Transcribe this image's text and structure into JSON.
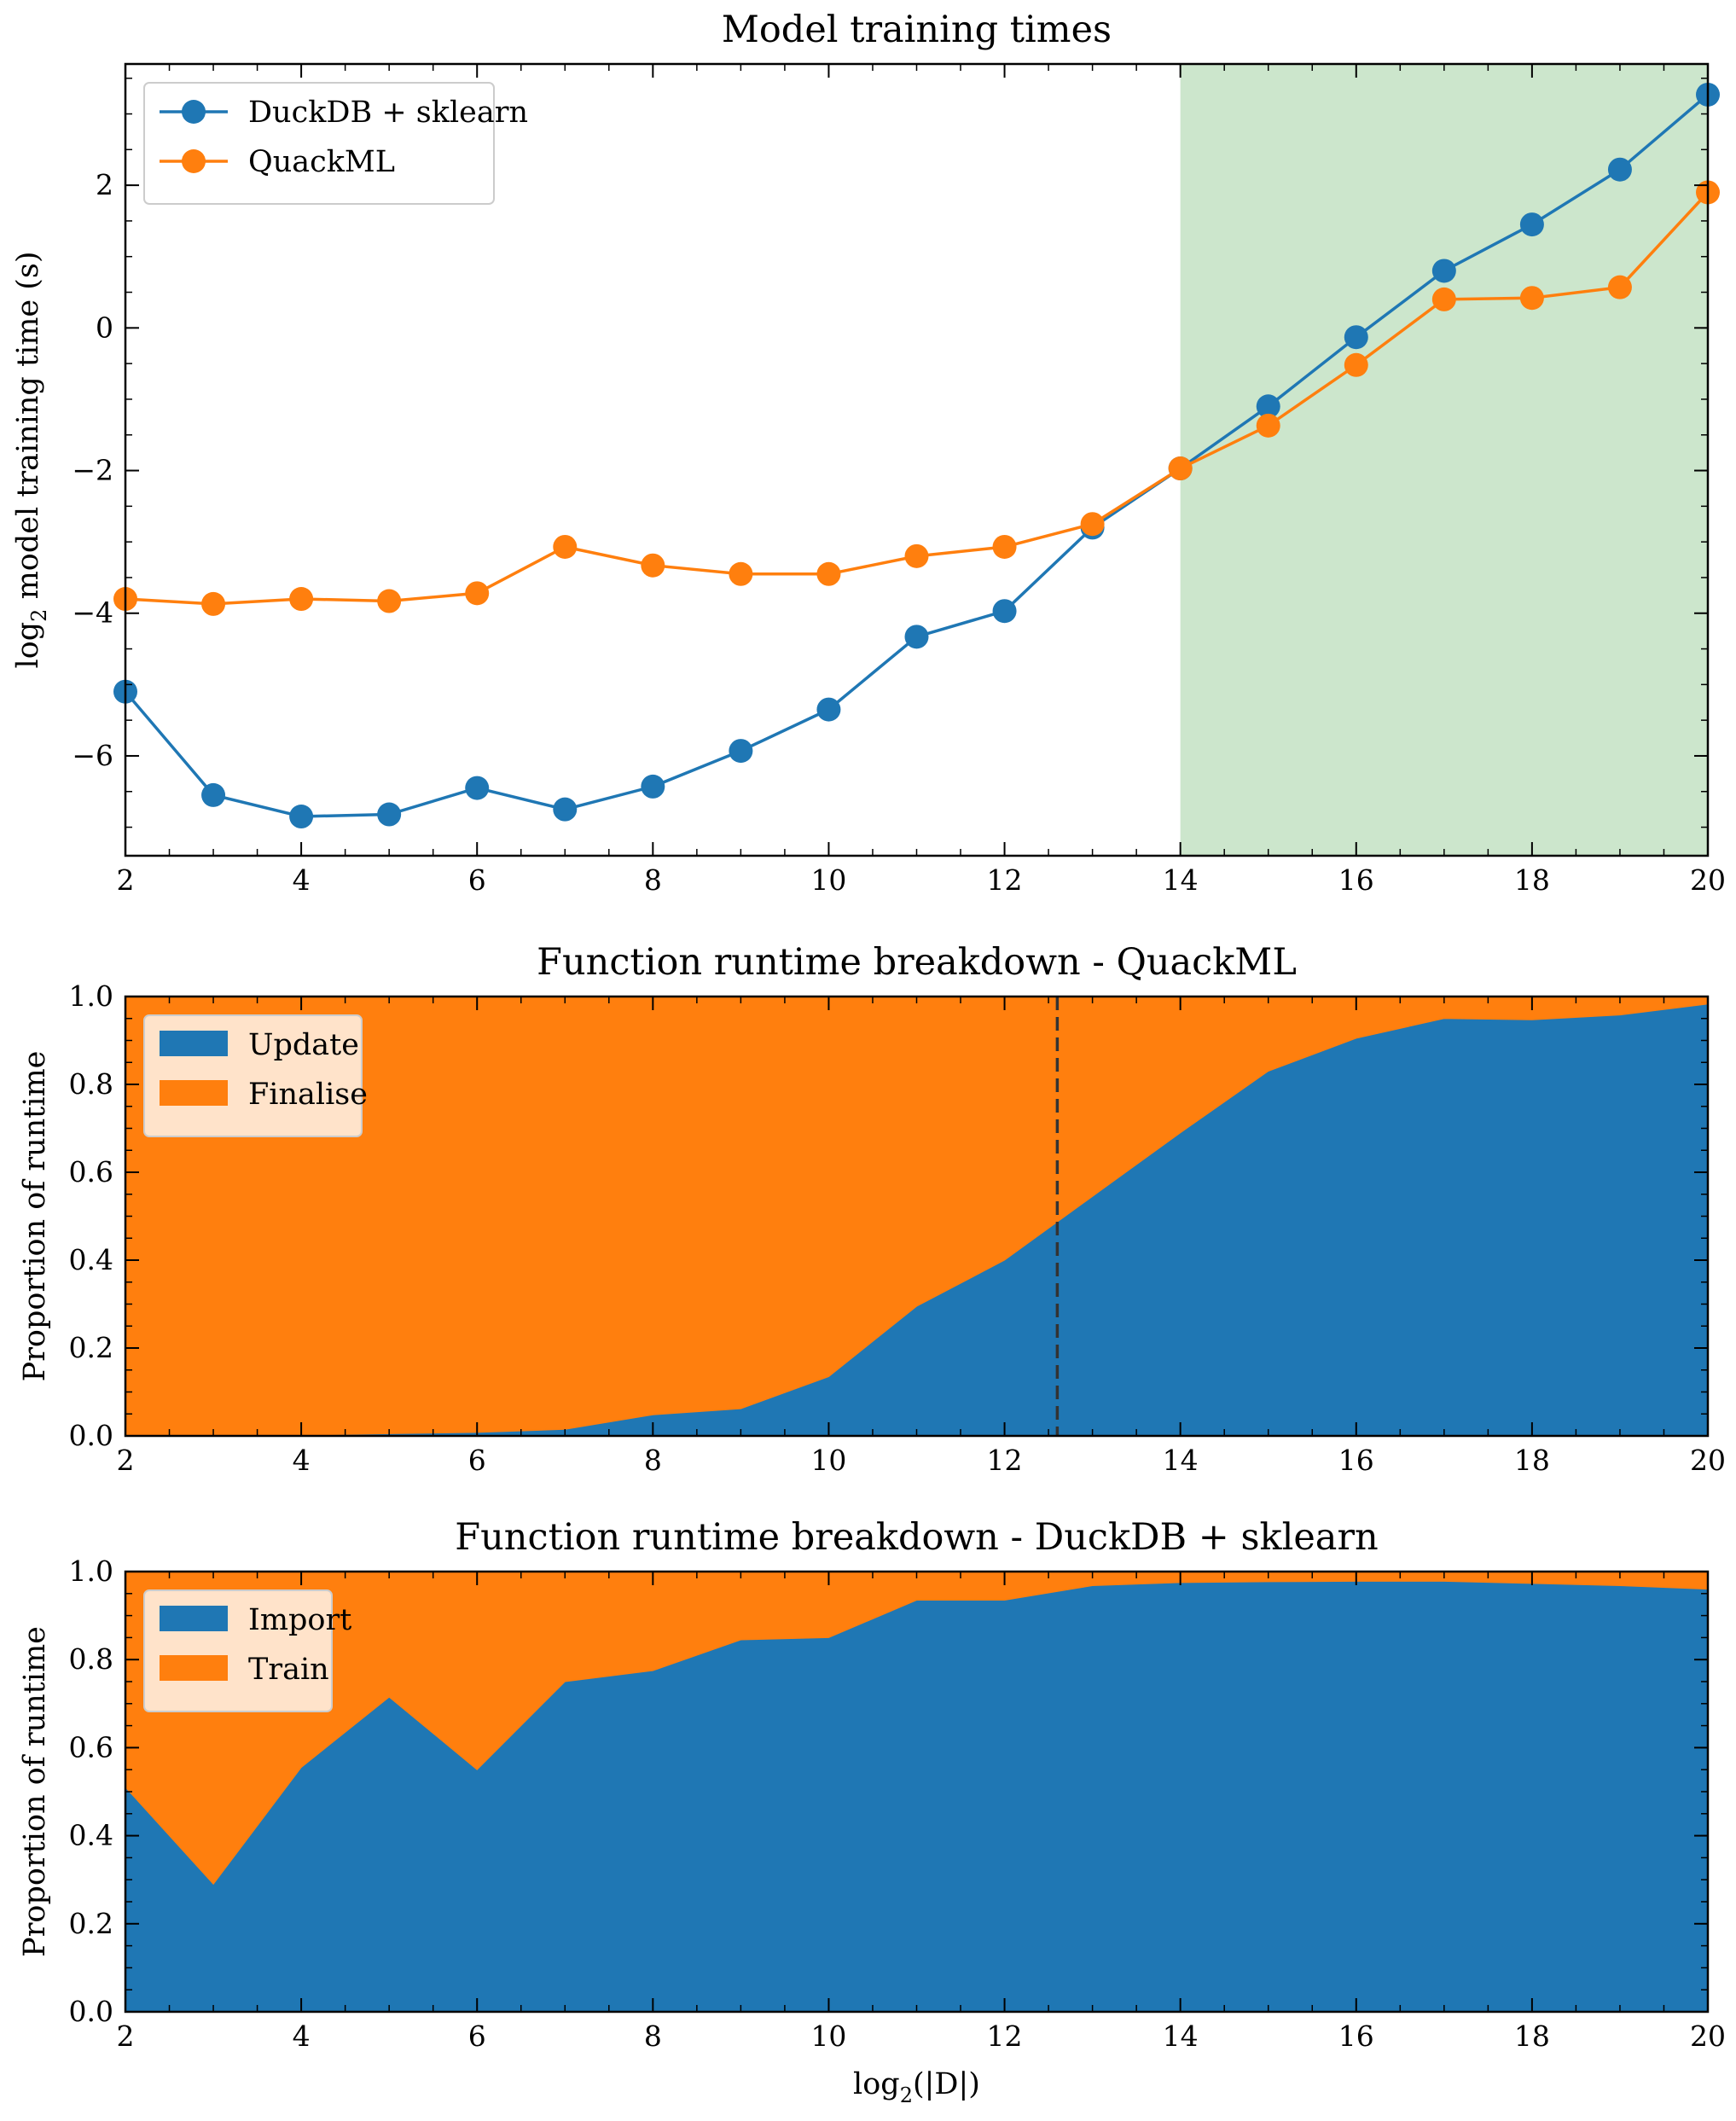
{
  "chart_data": [
    {
      "type": "line",
      "title": "Model training times",
      "xlabel": "",
      "ylabel_parts": {
        "log": "log",
        "sub": "2",
        "rest": " model training time (s)"
      },
      "xlim": [
        2,
        20
      ],
      "ylim": [
        -7.4,
        3.7
      ],
      "xticks": [
        2,
        4,
        6,
        8,
        10,
        12,
        14,
        16,
        18,
        20
      ],
      "yticks": [
        -6,
        -4,
        -2,
        0,
        2
      ],
      "ytick_labels": [
        "−6",
        "−4",
        "−2",
        "0",
        "2"
      ],
      "highlight_region": {
        "x0": 14,
        "x1": 20,
        "color": "#cce6cc"
      },
      "legend_position": "top-left",
      "grid": false,
      "x": [
        2,
        3,
        4,
        5,
        6,
        7,
        8,
        9,
        10,
        11,
        12,
        13,
        14,
        15,
        16,
        17,
        18,
        19,
        20
      ],
      "series": [
        {
          "name": "DuckDB + sklearn",
          "color": "#1f77b4",
          "values": [
            -5.1,
            -6.55,
            -6.85,
            -6.82,
            -6.45,
            -6.75,
            -6.43,
            -5.93,
            -5.35,
            -4.33,
            -3.97,
            -2.8,
            -1.97,
            -1.1,
            -0.13,
            0.8,
            1.45,
            2.22,
            3.27
          ]
        },
        {
          "name": "QuackML",
          "color": "#ff7f0e",
          "values": [
            -3.8,
            -3.87,
            -3.8,
            -3.83,
            -3.72,
            -3.07,
            -3.33,
            -3.45,
            -3.45,
            -3.2,
            -3.07,
            -2.75,
            -1.97,
            -1.37,
            -0.52,
            0.4,
            0.42,
            0.57,
            1.9
          ]
        }
      ]
    },
    {
      "type": "area",
      "stacked": true,
      "title": "Function runtime breakdown - QuackML",
      "xlabel": "",
      "ylabel": "Proportion of runtime",
      "xlim": [
        2,
        20
      ],
      "ylim": [
        0,
        1
      ],
      "xticks": [
        2,
        4,
        6,
        8,
        10,
        12,
        14,
        16,
        18,
        20
      ],
      "yticks": [
        0.0,
        0.2,
        0.4,
        0.6,
        0.8,
        1.0
      ],
      "ytick_labels": [
        "0.0",
        "0.2",
        "0.4",
        "0.6",
        "0.8",
        "1.0"
      ],
      "vline": {
        "x": 12.6,
        "style": "dashed"
      },
      "legend_position": "top-left",
      "grid": false,
      "x": [
        2,
        3,
        4,
        5,
        6,
        7,
        8,
        9,
        10,
        11,
        12,
        13,
        14,
        15,
        16,
        17,
        18,
        19,
        20
      ],
      "series": [
        {
          "name": "Update",
          "color": "#1f77b4",
          "values": [
            0.0,
            0.0,
            0.002,
            0.005,
            0.008,
            0.015,
            0.048,
            0.062,
            0.135,
            0.295,
            0.4,
            0.545,
            0.69,
            0.83,
            0.905,
            0.95,
            0.947,
            0.958,
            0.983
          ]
        },
        {
          "name": "Finalise",
          "color": "#ff7f0e",
          "values": [
            1.0,
            1.0,
            0.998,
            0.995,
            0.992,
            0.985,
            0.952,
            0.938,
            0.865,
            0.705,
            0.6,
            0.455,
            0.31,
            0.17,
            0.095,
            0.05,
            0.053,
            0.042,
            0.017
          ]
        }
      ]
    },
    {
      "type": "area",
      "stacked": true,
      "title": "Function runtime breakdown - DuckDB + sklearn",
      "xlabel_parts": {
        "log": "log",
        "sub": "2",
        "rest": "(|D|)"
      },
      "ylabel": "Proportion of runtime",
      "xlim": [
        2,
        20
      ],
      "ylim": [
        0,
        1
      ],
      "xticks": [
        2,
        4,
        6,
        8,
        10,
        12,
        14,
        16,
        18,
        20
      ],
      "yticks": [
        0.0,
        0.2,
        0.4,
        0.6,
        0.8,
        1.0
      ],
      "ytick_labels": [
        "0.0",
        "0.2",
        "0.4",
        "0.6",
        "0.8",
        "1.0"
      ],
      "legend_position": "top-left",
      "grid": false,
      "x": [
        2,
        3,
        4,
        5,
        6,
        7,
        8,
        9,
        10,
        11,
        12,
        13,
        14,
        15,
        16,
        17,
        18,
        19,
        20
      ],
      "series": [
        {
          "name": "Import",
          "color": "#1f77b4",
          "values": [
            0.51,
            0.29,
            0.555,
            0.715,
            0.55,
            0.75,
            0.775,
            0.845,
            0.85,
            0.935,
            0.935,
            0.968,
            0.975,
            0.977,
            0.978,
            0.978,
            0.973,
            0.968,
            0.96
          ]
        },
        {
          "name": "Train",
          "color": "#ff7f0e",
          "values": [
            0.49,
            0.71,
            0.445,
            0.285,
            0.45,
            0.25,
            0.225,
            0.155,
            0.15,
            0.065,
            0.065,
            0.032,
            0.025,
            0.023,
            0.022,
            0.022,
            0.027,
            0.032,
            0.04
          ]
        }
      ]
    }
  ]
}
